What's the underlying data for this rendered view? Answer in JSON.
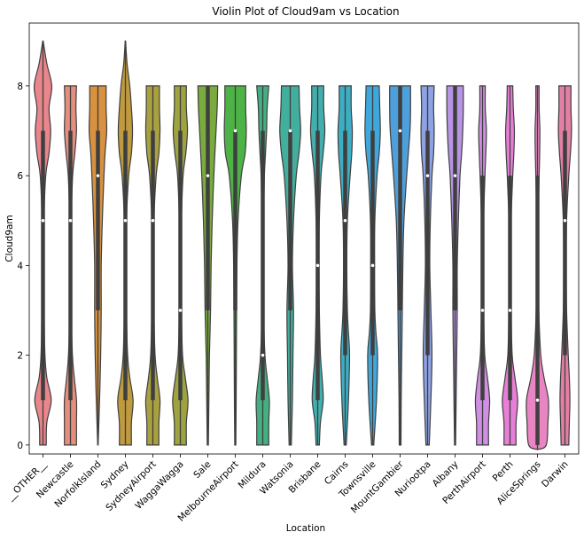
{
  "chart_data": {
    "type": "violin",
    "title": "Violin Plot of Cloud9am vs Location",
    "xlabel": "Location",
    "ylabel": "Cloud9am",
    "ylim": [
      -0.2,
      9.4
    ],
    "yticks": [
      0,
      2,
      4,
      6,
      8
    ],
    "grid": false,
    "categories": [
      "__OTHER__",
      "Newcastle",
      "NorfolkIsland",
      "Sydney",
      "SydneyAirport",
      "WaggaWagga",
      "Sale",
      "MelbourneAirport",
      "Mildura",
      "Watsonia",
      "Brisbane",
      "Cairns",
      "Townsville",
      "MountGambier",
      "Nuriootpa",
      "Albany",
      "PerthAirport",
      "Perth",
      "AliceSprings",
      "Darwin"
    ],
    "colors": [
      "#e8868c",
      "#e58e7e",
      "#d8913f",
      "#bf9a3f",
      "#a9a03f",
      "#9ea33f",
      "#7aab3e",
      "#4db346",
      "#43b082",
      "#42ae9d",
      "#42aeae",
      "#3eadc2",
      "#3ea8dc",
      "#4ea0dd",
      "#8da1e3",
      "#b894e5",
      "#d08fe3",
      "#e77fd8",
      "#e885c2",
      "#e27fa5"
    ],
    "series": [
      {
        "min": 0,
        "max": 9,
        "q1": 1,
        "median": 5,
        "q3": 7,
        "density": [
          [
            0,
            0.3
          ],
          [
            0.5,
            0.35
          ],
          [
            1,
            0.75
          ],
          [
            1.5,
            0.35
          ],
          [
            2,
            0.18
          ],
          [
            3,
            0.1
          ],
          [
            4,
            0.08
          ],
          [
            5,
            0.09
          ],
          [
            6,
            0.25
          ],
          [
            6.5,
            0.55
          ],
          [
            7,
            0.7
          ],
          [
            7.5,
            0.55
          ],
          [
            8,
            0.8
          ],
          [
            8.5,
            0.35
          ],
          [
            9,
            0.02
          ]
        ]
      },
      {
        "min": 0,
        "max": 8,
        "q1": 1,
        "median": 5,
        "q3": 7,
        "density": [
          [
            0,
            0.55
          ],
          [
            0.5,
            0.55
          ],
          [
            1,
            0.55
          ],
          [
            1.5,
            0.35
          ],
          [
            2,
            0.18
          ],
          [
            3,
            0.08
          ],
          [
            4,
            0.07
          ],
          [
            5,
            0.08
          ],
          [
            6,
            0.2
          ],
          [
            6.5,
            0.4
          ],
          [
            7,
            0.55
          ],
          [
            7.5,
            0.5
          ],
          [
            8,
            0.55
          ]
        ]
      },
      {
        "min": 0,
        "max": 8,
        "q1": 3,
        "median": 6,
        "q3": 7,
        "density": [
          [
            0,
            0.02
          ],
          [
            1,
            0.15
          ],
          [
            2,
            0.25
          ],
          [
            3,
            0.3
          ],
          [
            4,
            0.3
          ],
          [
            5,
            0.4
          ],
          [
            6,
            0.55
          ],
          [
            6.5,
            0.65
          ],
          [
            7,
            0.8
          ],
          [
            7.5,
            0.75
          ],
          [
            8,
            0.75
          ]
        ]
      },
      {
        "min": 0,
        "max": 9,
        "q1": 1,
        "median": 5,
        "q3": 7,
        "density": [
          [
            0,
            0.55
          ],
          [
            0.5,
            0.55
          ],
          [
            1,
            0.7
          ],
          [
            1.5,
            0.4
          ],
          [
            2,
            0.2
          ],
          [
            3,
            0.1
          ],
          [
            4,
            0.08
          ],
          [
            5,
            0.1
          ],
          [
            6,
            0.3
          ],
          [
            6.5,
            0.55
          ],
          [
            7,
            0.65
          ],
          [
            7.5,
            0.55
          ],
          [
            8,
            0.4
          ],
          [
            8.5,
            0.15
          ],
          [
            9,
            0.02
          ]
        ]
      },
      {
        "min": 0,
        "max": 8,
        "q1": 1,
        "median": 5,
        "q3": 7,
        "density": [
          [
            0,
            0.55
          ],
          [
            0.5,
            0.55
          ],
          [
            1,
            0.65
          ],
          [
            1.5,
            0.4
          ],
          [
            2,
            0.2
          ],
          [
            3,
            0.1
          ],
          [
            4,
            0.08
          ],
          [
            5,
            0.1
          ],
          [
            6,
            0.3
          ],
          [
            6.5,
            0.55
          ],
          [
            7,
            0.65
          ],
          [
            7.5,
            0.6
          ],
          [
            8,
            0.6
          ]
        ]
      },
      {
        "min": 0,
        "max": 8,
        "q1": 1,
        "median": 3,
        "q3": 7,
        "density": [
          [
            0,
            0.55
          ],
          [
            0.5,
            0.55
          ],
          [
            1,
            0.7
          ],
          [
            1.5,
            0.45
          ],
          [
            2,
            0.2
          ],
          [
            3,
            0.1
          ],
          [
            4,
            0.08
          ],
          [
            5,
            0.1
          ],
          [
            6,
            0.25
          ],
          [
            6.5,
            0.5
          ],
          [
            7,
            0.65
          ],
          [
            7.5,
            0.55
          ],
          [
            8,
            0.55
          ]
        ]
      },
      {
        "min": 0,
        "max": 8,
        "q1": 3,
        "median": 6,
        "q3": 8,
        "density": [
          [
            0,
            0.05
          ],
          [
            1,
            0.1
          ],
          [
            2,
            0.15
          ],
          [
            3,
            0.25
          ],
          [
            4,
            0.3
          ],
          [
            5,
            0.4
          ],
          [
            6,
            0.55
          ],
          [
            7,
            0.75
          ],
          [
            7.5,
            0.85
          ],
          [
            8,
            0.9
          ]
        ]
      },
      {
        "min": 0,
        "max": 8,
        "q1": 3,
        "median": 7,
        "q3": 7,
        "density": [
          [
            0,
            0.05
          ],
          [
            1,
            0.08
          ],
          [
            2,
            0.1
          ],
          [
            3,
            0.12
          ],
          [
            4,
            0.15
          ],
          [
            5,
            0.25
          ],
          [
            6,
            0.55
          ],
          [
            6.5,
            0.9
          ],
          [
            7,
            1.0
          ],
          [
            7.5,
            0.95
          ],
          [
            8,
            0.95
          ]
        ]
      },
      {
        "min": 0,
        "max": 8,
        "q1": 1,
        "median": 2,
        "q3": 7,
        "density": [
          [
            0,
            0.55
          ],
          [
            0.5,
            0.55
          ],
          [
            1,
            0.6
          ],
          [
            1.5,
            0.4
          ],
          [
            2,
            0.2
          ],
          [
            3,
            0.08
          ],
          [
            4,
            0.07
          ],
          [
            5,
            0.08
          ],
          [
            6,
            0.15
          ],
          [
            6.5,
            0.25
          ],
          [
            7,
            0.35
          ],
          [
            7.5,
            0.4
          ],
          [
            8,
            0.55
          ]
        ]
      },
      {
        "min": 0,
        "max": 8,
        "q1": 3,
        "median": 7,
        "q3": 7,
        "density": [
          [
            0,
            0.1
          ],
          [
            1,
            0.2
          ],
          [
            2,
            0.25
          ],
          [
            3,
            0.3
          ],
          [
            4,
            0.2
          ],
          [
            5,
            0.3
          ],
          [
            6,
            0.55
          ],
          [
            6.5,
            0.8
          ],
          [
            7,
            0.95
          ],
          [
            7.5,
            0.85
          ],
          [
            8,
            0.8
          ]
        ]
      },
      {
        "min": 0,
        "max": 8,
        "q1": 1,
        "median": 4,
        "q3": 7,
        "density": [
          [
            0,
            0.15
          ],
          [
            0.5,
            0.25
          ],
          [
            1,
            0.5
          ],
          [
            1.5,
            0.4
          ],
          [
            2,
            0.25
          ],
          [
            3,
            0.15
          ],
          [
            4,
            0.12
          ],
          [
            5,
            0.15
          ],
          [
            6,
            0.3
          ],
          [
            6.5,
            0.5
          ],
          [
            7,
            0.65
          ],
          [
            7.5,
            0.55
          ],
          [
            8,
            0.55
          ]
        ]
      },
      {
        "min": 0,
        "max": 8,
        "q1": 2,
        "median": 5,
        "q3": 7,
        "density": [
          [
            0,
            0.1
          ],
          [
            1,
            0.3
          ],
          [
            2,
            0.4
          ],
          [
            2.5,
            0.3
          ],
          [
            3,
            0.2
          ],
          [
            4,
            0.15
          ],
          [
            5,
            0.2
          ],
          [
            6,
            0.45
          ],
          [
            6.5,
            0.6
          ],
          [
            7,
            0.65
          ],
          [
            7.5,
            0.55
          ],
          [
            8,
            0.55
          ]
        ]
      },
      {
        "min": 0,
        "max": 8,
        "q1": 2,
        "median": 4,
        "q3": 7,
        "density": [
          [
            0,
            0.1
          ],
          [
            1,
            0.35
          ],
          [
            2,
            0.45
          ],
          [
            2.5,
            0.3
          ],
          [
            3,
            0.2
          ],
          [
            4,
            0.18
          ],
          [
            5,
            0.2
          ],
          [
            6,
            0.4
          ],
          [
            6.5,
            0.6
          ],
          [
            7,
            0.7
          ],
          [
            7.5,
            0.65
          ],
          [
            8,
            0.6
          ]
        ]
      },
      {
        "min": 0,
        "max": 8,
        "q1": 3,
        "median": 7,
        "q3": 8,
        "density": [
          [
            0,
            0.08
          ],
          [
            1,
            0.1
          ],
          [
            2,
            0.15
          ],
          [
            3,
            0.2
          ],
          [
            4,
            0.25
          ],
          [
            5,
            0.35
          ],
          [
            6,
            0.6
          ],
          [
            7,
            0.9
          ],
          [
            7.5,
            0.95
          ],
          [
            8,
            0.95
          ]
        ]
      },
      {
        "min": 0,
        "max": 8,
        "q1": 2,
        "median": 6,
        "q3": 7,
        "density": [
          [
            0,
            0.15
          ],
          [
            1,
            0.3
          ],
          [
            2,
            0.4
          ],
          [
            3,
            0.3
          ],
          [
            4,
            0.2
          ],
          [
            5,
            0.25
          ],
          [
            6,
            0.4
          ],
          [
            6.5,
            0.55
          ],
          [
            7,
            0.6
          ],
          [
            7.5,
            0.55
          ],
          [
            8,
            0.6
          ]
        ]
      },
      {
        "min": 0,
        "max": 8,
        "q1": 3,
        "median": 6,
        "q3": 8,
        "density": [
          [
            0,
            0.05
          ],
          [
            1,
            0.1
          ],
          [
            2,
            0.15
          ],
          [
            3,
            0.2
          ],
          [
            4,
            0.2
          ],
          [
            5,
            0.3
          ],
          [
            6,
            0.45
          ],
          [
            6.5,
            0.6
          ],
          [
            7,
            0.7
          ],
          [
            7.5,
            0.75
          ],
          [
            8,
            0.75
          ]
        ]
      },
      {
        "min": 0,
        "max": 8,
        "q1": 1,
        "median": 3,
        "q3": 6,
        "density": [
          [
            0,
            0.55
          ],
          [
            0.5,
            0.55
          ],
          [
            1,
            0.65
          ],
          [
            1.5,
            0.45
          ],
          [
            2,
            0.2
          ],
          [
            3,
            0.1
          ],
          [
            4,
            0.08
          ],
          [
            5,
            0.1
          ],
          [
            6,
            0.22
          ],
          [
            6.5,
            0.3
          ],
          [
            7,
            0.35
          ],
          [
            7.5,
            0.25
          ],
          [
            8,
            0.25
          ]
        ]
      },
      {
        "min": 0,
        "max": 8,
        "q1": 1,
        "median": 3,
        "q3": 6,
        "density": [
          [
            0,
            0.55
          ],
          [
            0.5,
            0.55
          ],
          [
            1,
            0.7
          ],
          [
            1.5,
            0.45
          ],
          [
            2,
            0.2
          ],
          [
            3,
            0.1
          ],
          [
            4,
            0.08
          ],
          [
            5,
            0.1
          ],
          [
            6,
            0.25
          ],
          [
            6.5,
            0.35
          ],
          [
            7,
            0.4
          ],
          [
            7.5,
            0.3
          ],
          [
            8,
            0.25
          ]
        ]
      },
      {
        "min": -0.1,
        "max": 8,
        "q1": 0,
        "median": 1,
        "q3": 6,
        "density": [
          [
            -0.1,
            0.02
          ],
          [
            0,
            0.8
          ],
          [
            0.5,
            0.95
          ],
          [
            1,
            1.0
          ],
          [
            1.5,
            0.6
          ],
          [
            2,
            0.3
          ],
          [
            3,
            0.12
          ],
          [
            4,
            0.08
          ],
          [
            5,
            0.08
          ],
          [
            6,
            0.15
          ],
          [
            6.5,
            0.2
          ],
          [
            7,
            0.22
          ],
          [
            7.5,
            0.15
          ],
          [
            8,
            0.15
          ]
        ]
      },
      {
        "min": 0,
        "max": 8,
        "q1": 2,
        "median": 5,
        "q3": 7,
        "density": [
          [
            0,
            0.35
          ],
          [
            0.5,
            0.4
          ],
          [
            1,
            0.45
          ],
          [
            1.5,
            0.4
          ],
          [
            2,
            0.3
          ],
          [
            3,
            0.15
          ],
          [
            4,
            0.12
          ],
          [
            5,
            0.15
          ],
          [
            6,
            0.35
          ],
          [
            6.5,
            0.5
          ],
          [
            7,
            0.6
          ],
          [
            7.5,
            0.55
          ],
          [
            8,
            0.55
          ]
        ]
      }
    ]
  }
}
